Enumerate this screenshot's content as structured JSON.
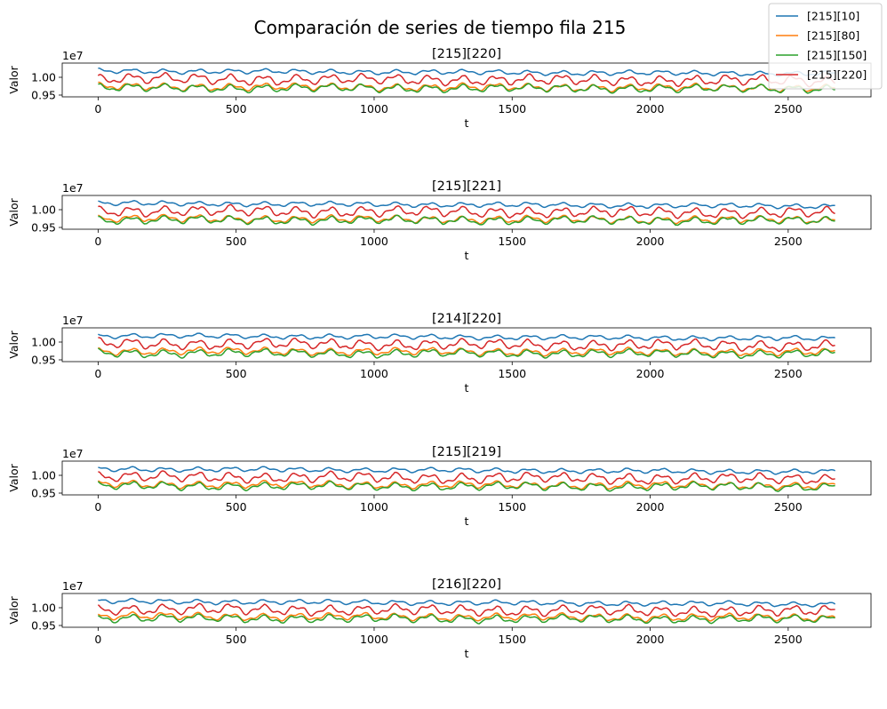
{
  "figure": {
    "title": "Comparación de series de tiempo fila 215"
  },
  "legend": {
    "placement": "top-right",
    "entries": [
      {
        "label": "[215][10]",
        "color": "#1f77b4"
      },
      {
        "label": "[215][80]",
        "color": "#ff7f0e"
      },
      {
        "label": "[215][150]",
        "color": "#2ca02c"
      },
      {
        "label": "[215][220]",
        "color": "#d62728"
      }
    ]
  },
  "chart_data": [
    {
      "type": "line",
      "title": "[215][220]",
      "xlabel": "t",
      "ylabel": "Valor",
      "offset_label": "1e7",
      "x_ticks": [
        0,
        500,
        1000,
        1500,
        2000,
        2500
      ],
      "y_ticks": [
        {
          "value": 0.95,
          "label": "0.95"
        },
        {
          "value": 1.0,
          "label": "1.00"
        }
      ],
      "xlim": [
        -130,
        2800
      ],
      "ylim": [
        0.945,
        1.04
      ],
      "x_range": [
        0,
        2670
      ],
      "series": [
        {
          "name": "[215][10]",
          "color": "#1f77b4",
          "mean": 1.018,
          "amp": 0.008,
          "trend": -0.008,
          "seed": 11
        },
        {
          "name": "[215][80]",
          "color": "#ff7f0e",
          "mean": 0.974,
          "amp": 0.012,
          "trend": -0.004,
          "seed": 21
        },
        {
          "name": "[215][150]",
          "color": "#2ca02c",
          "mean": 0.97,
          "amp": 0.013,
          "trend": -0.002,
          "seed": 31
        },
        {
          "name": "[215][220]",
          "color": "#d62728",
          "mean": 0.996,
          "amp": 0.017,
          "trend": -0.006,
          "seed": 41
        }
      ]
    },
    {
      "type": "line",
      "title": "[215][221]",
      "xlabel": "t",
      "ylabel": "Valor",
      "offset_label": "1e7",
      "x_ticks": [
        0,
        500,
        1000,
        1500,
        2000,
        2500
      ],
      "y_ticks": [
        {
          "value": 0.95,
          "label": "0.95"
        },
        {
          "value": 1.0,
          "label": "1.00"
        }
      ],
      "xlim": [
        -130,
        2800
      ],
      "ylim": [
        0.945,
        1.04
      ],
      "x_range": [
        0,
        2670
      ],
      "series": [
        {
          "name": "[215][10]",
          "color": "#1f77b4",
          "mean": 1.018,
          "amp": 0.008,
          "trend": -0.008,
          "seed": 12
        },
        {
          "name": "[215][80]",
          "color": "#ff7f0e",
          "mean": 0.975,
          "amp": 0.012,
          "trend": -0.004,
          "seed": 22
        },
        {
          "name": "[215][150]",
          "color": "#2ca02c",
          "mean": 0.971,
          "amp": 0.013,
          "trend": -0.002,
          "seed": 32
        },
        {
          "name": "[215][220]",
          "color": "#d62728",
          "mean": 0.997,
          "amp": 0.017,
          "trend": -0.006,
          "seed": 42
        }
      ]
    },
    {
      "type": "line",
      "title": "[214][220]",
      "xlabel": "t",
      "ylabel": "Valor",
      "offset_label": "1e7",
      "x_ticks": [
        0,
        500,
        1000,
        1500,
        2000,
        2500
      ],
      "y_ticks": [
        {
          "value": 0.95,
          "label": "0.95"
        },
        {
          "value": 1.0,
          "label": "1.00"
        }
      ],
      "xlim": [
        -130,
        2800
      ],
      "ylim": [
        0.945,
        1.04
      ],
      "x_range": [
        0,
        2670
      ],
      "series": [
        {
          "name": "[215][10]",
          "color": "#1f77b4",
          "mean": 1.018,
          "amp": 0.008,
          "trend": -0.008,
          "seed": 13
        },
        {
          "name": "[215][80]",
          "color": "#ff7f0e",
          "mean": 0.975,
          "amp": 0.012,
          "trend": -0.004,
          "seed": 23
        },
        {
          "name": "[215][150]",
          "color": "#2ca02c",
          "mean": 0.969,
          "amp": 0.013,
          "trend": -0.002,
          "seed": 33
        },
        {
          "name": "[215][220]",
          "color": "#d62728",
          "mean": 0.996,
          "amp": 0.017,
          "trend": -0.006,
          "seed": 43
        }
      ]
    },
    {
      "type": "line",
      "title": "[215][219]",
      "xlabel": "t",
      "ylabel": "Valor",
      "offset_label": "1e7",
      "x_ticks": [
        0,
        500,
        1000,
        1500,
        2000,
        2500
      ],
      "y_ticks": [
        {
          "value": 0.95,
          "label": "0.95"
        },
        {
          "value": 1.0,
          "label": "1.00"
        }
      ],
      "xlim": [
        -130,
        2800
      ],
      "ylim": [
        0.945,
        1.04
      ],
      "x_range": [
        0,
        2670
      ],
      "series": [
        {
          "name": "[215][10]",
          "color": "#1f77b4",
          "mean": 1.018,
          "amp": 0.008,
          "trend": -0.008,
          "seed": 14
        },
        {
          "name": "[215][80]",
          "color": "#ff7f0e",
          "mean": 0.975,
          "amp": 0.012,
          "trend": -0.004,
          "seed": 24
        },
        {
          "name": "[215][150]",
          "color": "#2ca02c",
          "mean": 0.97,
          "amp": 0.013,
          "trend": -0.002,
          "seed": 34
        },
        {
          "name": "[215][220]",
          "color": "#d62728",
          "mean": 0.996,
          "amp": 0.017,
          "trend": -0.006,
          "seed": 44
        }
      ]
    },
    {
      "type": "line",
      "title": "[216][220]",
      "xlabel": "t",
      "ylabel": "Valor",
      "offset_label": "1e7",
      "x_ticks": [
        0,
        500,
        1000,
        1500,
        2000,
        2500
      ],
      "y_ticks": [
        {
          "value": 0.95,
          "label": "0.95"
        },
        {
          "value": 1.0,
          "label": "1.00"
        }
      ],
      "xlim": [
        -130,
        2800
      ],
      "ylim": [
        0.945,
        1.04
      ],
      "x_range": [
        0,
        2670
      ],
      "series": [
        {
          "name": "[215][10]",
          "color": "#1f77b4",
          "mean": 1.018,
          "amp": 0.008,
          "trend": -0.008,
          "seed": 15
        },
        {
          "name": "[215][80]",
          "color": "#ff7f0e",
          "mean": 0.976,
          "amp": 0.012,
          "trend": -0.004,
          "seed": 25
        },
        {
          "name": "[215][150]",
          "color": "#2ca02c",
          "mean": 0.97,
          "amp": 0.013,
          "trend": -0.002,
          "seed": 35
        },
        {
          "name": "[215][220]",
          "color": "#d62728",
          "mean": 0.996,
          "amp": 0.017,
          "trend": -0.006,
          "seed": 45
        }
      ]
    }
  ]
}
